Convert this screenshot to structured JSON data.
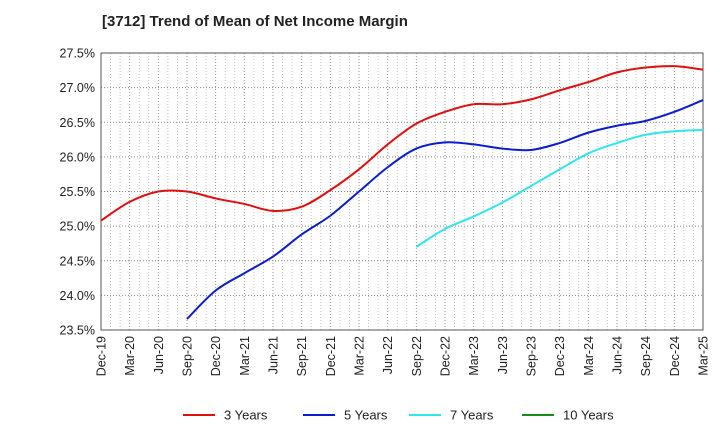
{
  "chart_data": {
    "type": "line",
    "title": "[3712]  Trend of Mean of Net Income Margin",
    "xlabel": "",
    "ylabel": "",
    "ylim": [
      23.5,
      27.5
    ],
    "yticks": [
      23.5,
      24.0,
      24.5,
      25.0,
      25.5,
      26.0,
      26.5,
      27.0,
      27.5
    ],
    "ytick_labels": [
      "23.5%",
      "24.0%",
      "24.5%",
      "25.0%",
      "25.5%",
      "26.0%",
      "26.5%",
      "27.0%",
      "27.5%"
    ],
    "xtick_labels": [
      "Dec-19",
      "Mar-20",
      "Jun-20",
      "Sep-20",
      "Dec-20",
      "Mar-21",
      "Jun-21",
      "Sep-21",
      "Dec-21",
      "Mar-22",
      "Jun-22",
      "Sep-22",
      "Dec-22",
      "Mar-23",
      "Jun-23",
      "Sep-23",
      "Dec-23",
      "Mar-24",
      "Jun-24",
      "Sep-24",
      "Dec-24",
      "Mar-25"
    ],
    "grid": true,
    "legend": "bottom",
    "series": [
      {
        "name": "3 Years",
        "color": "#e01010",
        "start_index": 0,
        "values": [
          25.08,
          25.35,
          25.5,
          25.5,
          25.4,
          25.32,
          25.22,
          25.28,
          25.52,
          25.82,
          26.18,
          26.48,
          26.65,
          26.76,
          26.76,
          26.83,
          26.96,
          27.08,
          27.22,
          27.29,
          27.31,
          27.26
        ]
      },
      {
        "name": "5 Years",
        "color": "#0a1ecf",
        "start_index": 3,
        "values": [
          23.66,
          24.07,
          24.32,
          24.56,
          24.88,
          25.15,
          25.5,
          25.85,
          26.12,
          26.21,
          26.18,
          26.12,
          26.1,
          26.2,
          26.35,
          26.45,
          26.52,
          26.65,
          26.82
        ]
      },
      {
        "name": "7 Years",
        "color": "#30e5f0",
        "start_index": 11,
        "values": [
          24.7,
          24.96,
          25.14,
          25.34,
          25.58,
          25.82,
          26.05,
          26.2,
          26.32,
          26.37,
          26.39
        ]
      },
      {
        "name": "10 Years",
        "color": "#1a8a1a",
        "start_index": 0,
        "values": []
      }
    ]
  }
}
